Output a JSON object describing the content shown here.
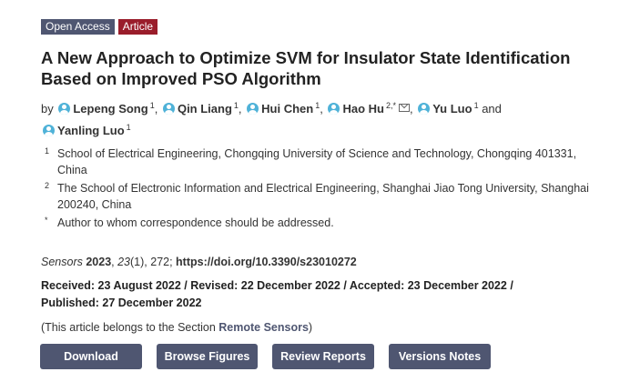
{
  "badges": {
    "open_access": "Open Access",
    "article": "Article"
  },
  "title": "A New Approach to Optimize SVM for Insulator State Identification Based on Improved PSO Algorithm",
  "authors": {
    "by": "by",
    "and": "and",
    "list": [
      {
        "name": "Lepeng Song",
        "sup": "1"
      },
      {
        "name": "Qin Liang",
        "sup": "1"
      },
      {
        "name": "Hui Chen",
        "sup": "1"
      },
      {
        "name": "Hao Hu",
        "sup": "2,*"
      },
      {
        "name": "Yu Luo",
        "sup": "1"
      },
      {
        "name": "Yanling Luo",
        "sup": "1"
      }
    ]
  },
  "affiliations": [
    {
      "num": "1",
      "text": "School of Electrical Engineering, Chongqing University of Science and Technology, Chongqing 401331, China"
    },
    {
      "num": "2",
      "text": "The School of Electronic Information and Electrical Engineering, Shanghai Jiao Tong University, Shanghai 200240, China"
    },
    {
      "num": "*",
      "text": "Author to whom correspondence should be addressed."
    }
  ],
  "citation": {
    "journal": "Sensors",
    "year": "2023",
    "volume": "23",
    "issue": "(1), 272; ",
    "doi": "https://doi.org/10.3390/s23010272"
  },
  "dates": {
    "line1": "Received: 23 August 2022 / Revised: 22 December 2022 / Accepted: 23 December 2022 /",
    "line2": "Published: 27 December 2022"
  },
  "section": {
    "prefix": "(This article belongs to the Section ",
    "name": "Remote Sensors",
    "suffix": ")"
  },
  "buttons": {
    "download": "Download",
    "browse_figures": "Browse Figures",
    "review_reports": "Review Reports",
    "versions_notes": "Versions Notes"
  },
  "colors": {
    "button_bg": "#4f5671",
    "badge_article": "#9a1d2b",
    "author_icon": "#4fb2d8"
  }
}
